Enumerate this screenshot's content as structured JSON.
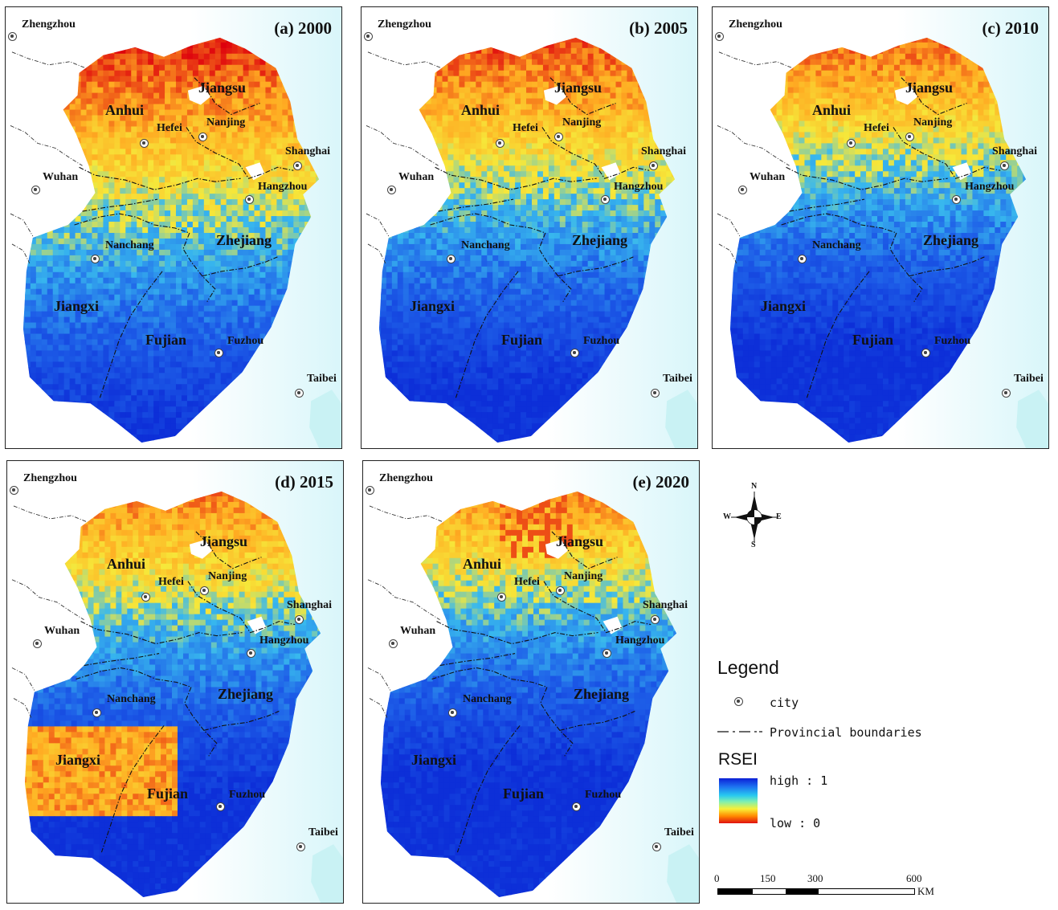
{
  "panels": [
    {
      "title": "(a) 2000",
      "scheme": 0
    },
    {
      "title": "(b) 2005",
      "scheme": 1
    },
    {
      "title": "(c) 2010",
      "scheme": 2
    },
    {
      "title": "(d) 2015",
      "scheme": 3
    },
    {
      "title": "(e) 2020",
      "scheme": 4
    }
  ],
  "cities": {
    "zhengzhou": "Zhengzhou",
    "wuhan": "Wuhan",
    "hefei": "Hefei",
    "nanjing": "Nanjing",
    "shanghai": "Shanghai",
    "hangzhou": "Hangzhou",
    "nanchang": "Nanchang",
    "fuzhou": "Fuzhou",
    "taibei": "Taibei"
  },
  "provinces": {
    "jiangsu": "Jiangsu",
    "anhui": "Anhui",
    "zhejiang": "Zhejiang",
    "jiangxi": "Jiangxi",
    "fujian": "Fujian"
  },
  "compass": {
    "n": "N",
    "s": "S",
    "e": "E",
    "w": "W"
  },
  "legend": {
    "title": "Legend",
    "city": "city",
    "boundaries": "Provincial boundaries",
    "rsei_title": "RSEI",
    "high": "high : 1",
    "low": "low : 0",
    "ramp_colors": [
      "#0b1fd6",
      "#1d6ff0",
      "#27c8f0",
      "#7ff0b0",
      "#f8f038",
      "#ff8a00",
      "#e01010"
    ]
  },
  "scale": {
    "ticks": [
      "0",
      "150",
      "300",
      "600"
    ],
    "unit": "KM"
  },
  "colors": {
    "sea": "#d9f6fa",
    "blue": "#1e5fe8",
    "blue_dark": "#0d2fd8",
    "cyan": "#38b8ee",
    "yellow": "#f6e83a",
    "orange": "#ffab22",
    "red": "#e62a12",
    "boundary": "#111111"
  }
}
